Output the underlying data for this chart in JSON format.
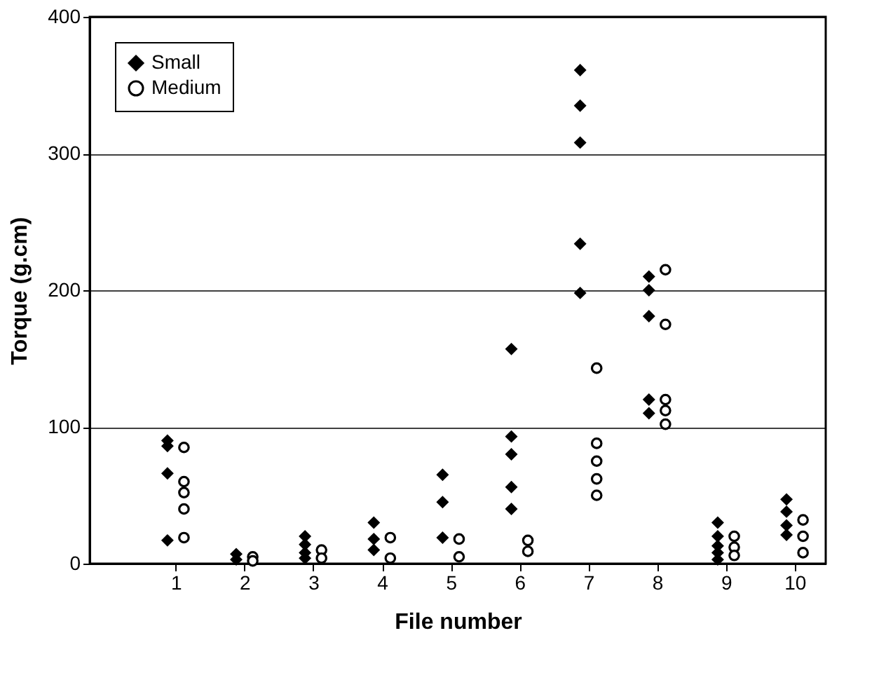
{
  "chart_data": {
    "type": "scatter",
    "xlabel": "File number",
    "ylabel": "Torque (g.cm)",
    "xlim": [
      -0.25,
      10.45
    ],
    "xticks": [
      1,
      2,
      3,
      4,
      5,
      6,
      7,
      8,
      9,
      10
    ],
    "ylim": [
      0,
      400
    ],
    "yticks": [
      0,
      100,
      200,
      300,
      400
    ],
    "grid": "y",
    "legend": "top left",
    "series": [
      {
        "name": "Small",
        "color": "#000000",
        "marker": "diamond",
        "x": [
          0.88,
          0.88,
          0.88,
          0.88,
          1.88,
          1.88,
          2.88,
          2.88,
          2.88,
          2.88,
          3.88,
          3.88,
          3.88,
          4.88,
          4.88,
          4.88,
          5.88,
          5.88,
          5.88,
          5.88,
          5.88,
          6.88,
          6.88,
          6.88,
          6.88,
          6.88,
          7.88,
          7.88,
          7.88,
          7.88,
          7.88,
          8.88,
          8.88,
          8.88,
          8.88,
          8.88,
          9.88,
          9.88,
          9.88,
          9.88
        ],
        "values": [
          90,
          86,
          66,
          17,
          7,
          3,
          20,
          14,
          8,
          4,
          30,
          18,
          10,
          65,
          45,
          19,
          157,
          93,
          80,
          56,
          40,
          361,
          335,
          308,
          234,
          198,
          210,
          200,
          181,
          120,
          110,
          30,
          20,
          13,
          8,
          3,
          47,
          38,
          28,
          21
        ]
      },
      {
        "name": "Medium",
        "color": "#000000",
        "marker": "circle",
        "x": [
          1.12,
          1.12,
          1.12,
          1.12,
          1.12,
          2.12,
          2.12,
          3.12,
          3.12,
          4.12,
          4.12,
          5.12,
          5.12,
          6.12,
          6.12,
          7.12,
          7.12,
          7.12,
          7.12,
          7.12,
          8.12,
          8.12,
          8.12,
          8.12,
          8.12,
          9.12,
          9.12,
          9.12,
          10.12,
          10.12,
          10.12
        ],
        "values": [
          85,
          60,
          52,
          40,
          19,
          5,
          2,
          10,
          4,
          19,
          4,
          18,
          5,
          17,
          9,
          143,
          88,
          75,
          62,
          50,
          215,
          175,
          120,
          112,
          102,
          20,
          12,
          6,
          32,
          20,
          8
        ]
      }
    ]
  }
}
